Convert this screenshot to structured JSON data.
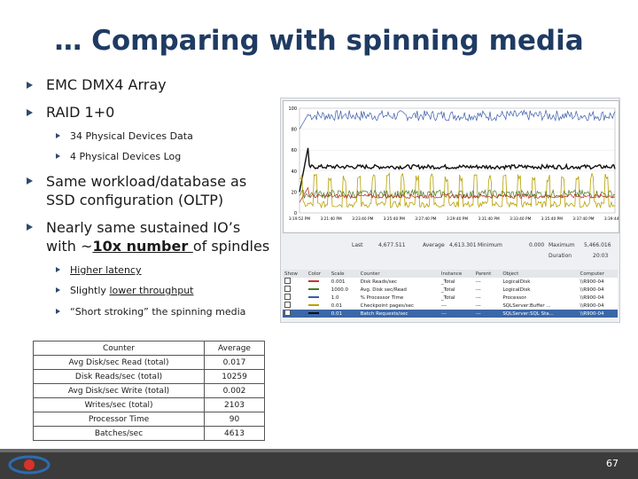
{
  "slide": {
    "title": "… Comparing with spinning media",
    "page_number": "67"
  },
  "bullets": {
    "b1": "EMC DMX4 Array",
    "b2": "RAID 1+0",
    "b2a": "34 Physical Devices Data",
    "b2b": "4 Physical Devices Log",
    "b3_line1": "Same workload/database as",
    "b3_line2": "SSD configuration (OLTP)",
    "b4_line1": "Nearly same sustained IO’s",
    "b4_pre": "with ~",
    "b4_bold": "10x number ",
    "b4_post": "of spindles",
    "b4a": "Higher latency",
    "b4b_pre": "Slightly ",
    "b4b_u": "lower throughput",
    "b4c": "“Short stroking” the spinning media"
  },
  "metrics_table": {
    "header": [
      "Counter",
      "Average"
    ],
    "rows": [
      [
        "Avg Disk/sec Read (total)",
        "0.017"
      ],
      [
        "Disk Reads/sec (total)",
        "10259"
      ],
      [
        "Avg Disk/sec Write (total)",
        "0.002"
      ],
      [
        "Writes/sec (total)",
        "2103"
      ],
      [
        "Processor Time",
        "90"
      ],
      [
        "Batches/sec",
        "4613"
      ]
    ]
  },
  "perfmon": {
    "y_ticks": [
      "100",
      "80",
      "60",
      "40",
      "20",
      "0"
    ],
    "x_ticks": [
      "3:19:52 PM",
      "3:21:40 PM",
      "3:23:40 PM",
      "3:25:40 PM",
      "3:27:40 PM",
      "3:29:40 PM",
      "3:31:40 PM",
      "3:33:40 PM",
      "3:35:40 PM",
      "3:37:40 PM",
      "3:39:44 PM"
    ],
    "stats": {
      "last_label": "Last",
      "last": "4,677.511",
      "average_label": "Average",
      "average": "4,613.301",
      "minimum_label": "Minimum",
      "minimum": "0.000",
      "maximum_label": "Maximum",
      "maximum": "5,466.016",
      "duration_label": "Duration",
      "duration": "20:03"
    },
    "columns": [
      "Show",
      "Color",
      "Scale",
      "Counter",
      "Instance",
      "Parent",
      "Object",
      "Computer"
    ],
    "rows": [
      {
        "color": "#c0392b",
        "scale": "0.001",
        "counter": "Disk Reads/sec",
        "instance": "_Total",
        "parent": "---",
        "object": "LogicalDisk",
        "computer": "\\\\R900-04"
      },
      {
        "color": "#4a7a2a",
        "scale": "1000.0",
        "counter": "Avg. Disk sec/Read",
        "instance": "_Total",
        "parent": "---",
        "object": "LogicalDisk",
        "computer": "\\\\R900-04"
      },
      {
        "color": "#3a5ba8",
        "scale": "1.0",
        "counter": "% Processor Time",
        "instance": "_Total",
        "parent": "---",
        "object": "Processor",
        "computer": "\\\\R900-04"
      },
      {
        "color": "#b8a000",
        "scale": "0.01",
        "counter": "Checkpoint pages/sec",
        "instance": "---",
        "parent": "---",
        "object": "SQLServer:Buffer ...",
        "computer": "\\\\R900-04"
      },
      {
        "color": "#111111",
        "scale": "0.01",
        "counter": "Batch Requests/sec",
        "instance": "---",
        "parent": "---",
        "object": "SQLServer:SQL Sta...",
        "computer": "\\\\R900-04"
      }
    ],
    "series_colors": {
      "processor": "#3a5ba8",
      "batches": "#111111",
      "checkpoint": "#b8a000",
      "disk_reads": "#c0392b",
      "latency": "#4a7a2a"
    }
  }
}
